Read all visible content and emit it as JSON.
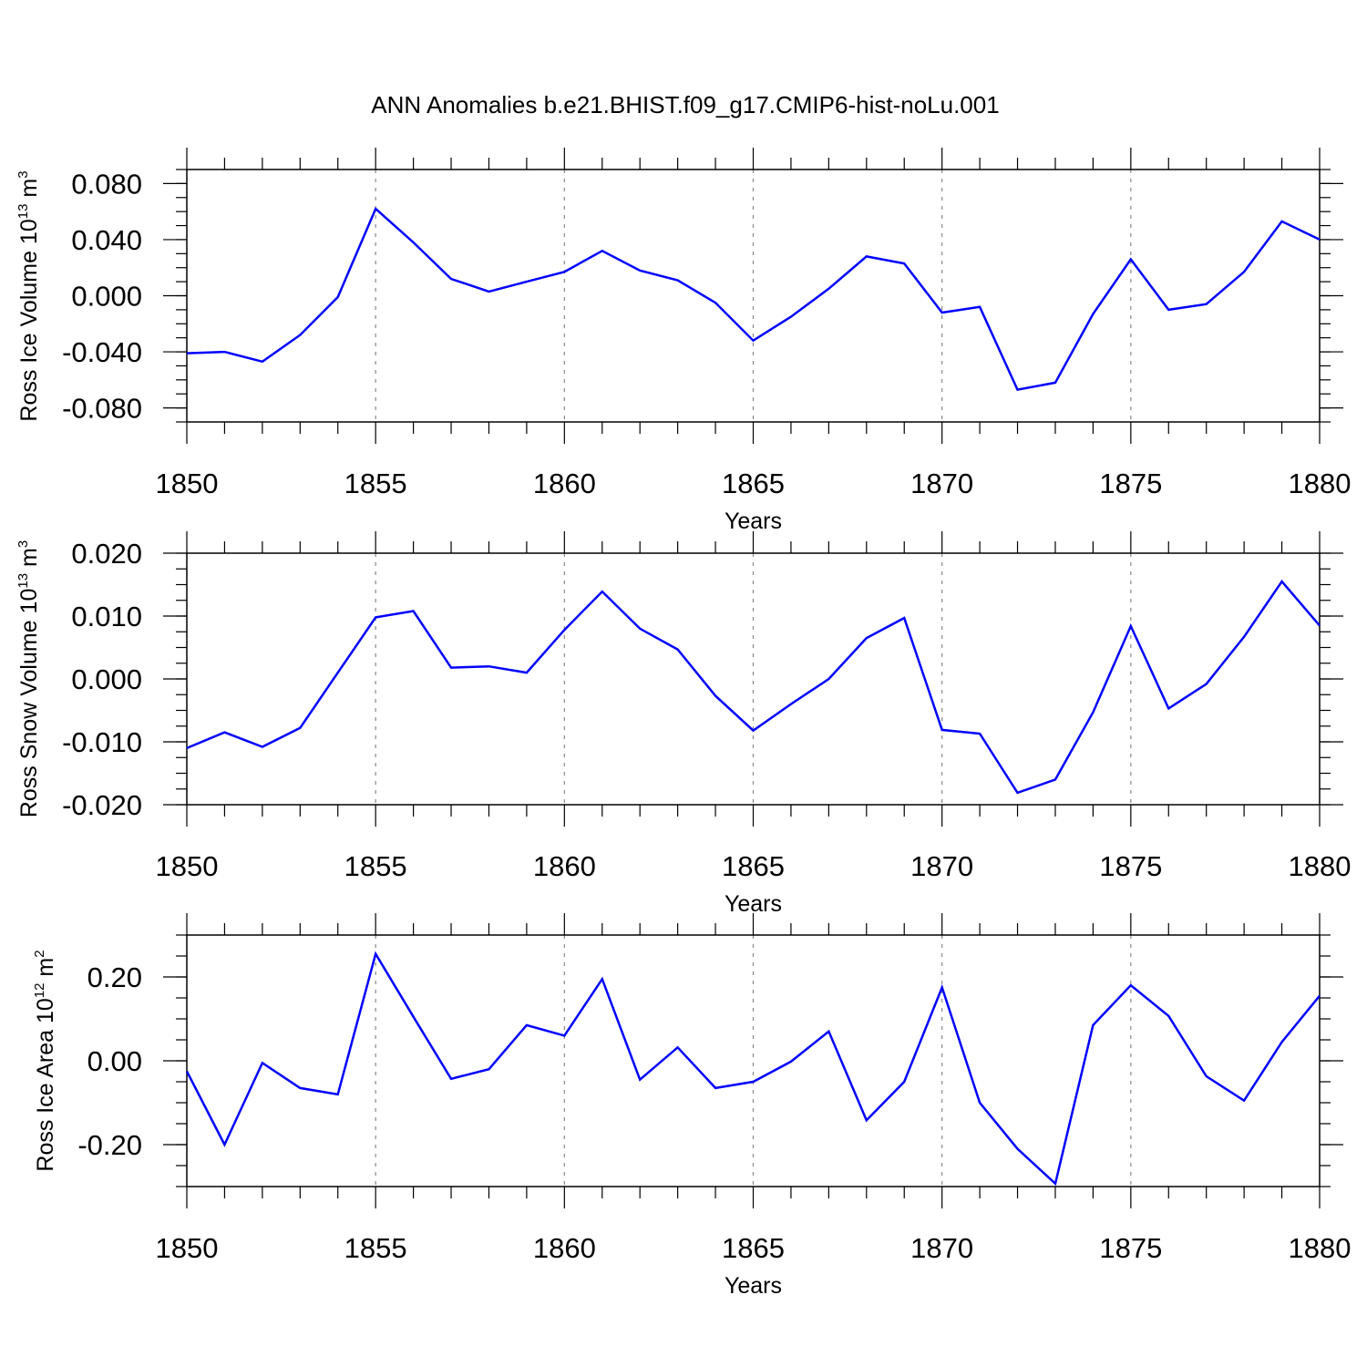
{
  "figure": {
    "title": "ANN Anomalies b.e21.BHIST.f09_g17.CMIP6-hist-noLu.001",
    "line_color": "#0000ff",
    "grid_color": "#888888",
    "axis_color": "#000000"
  },
  "chart_data": [
    {
      "type": "line",
      "ylabel": {
        "prefix": "Ross Ice Volume 10",
        "exp": "13",
        "unit": " m",
        "unit_exp": "3"
      },
      "xlabel": "Years",
      "xlim": [
        1850,
        1880
      ],
      "ylim": [
        -0.09,
        0.09
      ],
      "xticks": [
        1850,
        1855,
        1860,
        1865,
        1870,
        1875,
        1880
      ],
      "xtick_labels": [
        "1850",
        "1855",
        "1860",
        "1865",
        "1870",
        "1875",
        "1880"
      ],
      "yticks": [
        -0.08,
        -0.04,
        0.0,
        0.04,
        0.08
      ],
      "ytick_labels": [
        "-0.080",
        "-0.040",
        "0.000",
        "0.040",
        "0.080"
      ],
      "yminor_step": 0.01,
      "grid": "vertical dashed at major x ticks",
      "x": [
        1850,
        1851,
        1852,
        1853,
        1854,
        1855,
        1856,
        1857,
        1858,
        1859,
        1860,
        1861,
        1862,
        1863,
        1864,
        1865,
        1866,
        1867,
        1868,
        1869,
        1870,
        1871,
        1872,
        1873,
        1874,
        1875,
        1876,
        1877,
        1878,
        1879,
        1880
      ],
      "y": [
        -0.041,
        -0.04,
        -0.047,
        -0.028,
        -0.001,
        0.062,
        0.038,
        0.012,
        0.003,
        0.01,
        0.017,
        0.032,
        0.018,
        0.011,
        -0.005,
        -0.032,
        -0.015,
        0.005,
        0.028,
        0.023,
        -0.012,
        -0.008,
        -0.067,
        -0.062,
        -0.013,
        0.026,
        -0.01,
        -0.006,
        0.017,
        0.053,
        0.04
      ]
    },
    {
      "type": "line",
      "ylabel": {
        "prefix": "Ross Snow Volume 10",
        "exp": "13",
        "unit": " m",
        "unit_exp": "3"
      },
      "xlabel": "Years",
      "xlim": [
        1850,
        1880
      ],
      "ylim": [
        -0.02,
        0.02
      ],
      "xticks": [
        1850,
        1855,
        1860,
        1865,
        1870,
        1875,
        1880
      ],
      "xtick_labels": [
        "1850",
        "1855",
        "1860",
        "1865",
        "1870",
        "1875",
        "1880"
      ],
      "yticks": [
        -0.02,
        -0.01,
        0.0,
        0.01,
        0.02
      ],
      "ytick_labels": [
        "-0.020",
        "-0.010",
        "0.000",
        "0.010",
        "0.020"
      ],
      "yminor_step": 0.0025,
      "grid": "vertical dashed at major x ticks",
      "x": [
        1850,
        1851,
        1852,
        1853,
        1854,
        1855,
        1856,
        1857,
        1858,
        1859,
        1860,
        1861,
        1862,
        1863,
        1864,
        1865,
        1866,
        1867,
        1868,
        1869,
        1870,
        1871,
        1872,
        1873,
        1874,
        1875,
        1876,
        1877,
        1878,
        1879,
        1880
      ],
      "y": [
        -0.011,
        -0.0085,
        -0.0108,
        -0.0078,
        0.001,
        0.0098,
        0.0108,
        0.0018,
        0.002,
        0.001,
        0.0078,
        0.0139,
        0.008,
        0.0047,
        -0.0027,
        -0.0082,
        -0.004,
        0.0,
        0.0065,
        0.0097,
        -0.0081,
        -0.0087,
        -0.0181,
        -0.016,
        -0.0053,
        0.0084,
        -0.0047,
        -0.0008,
        0.0067,
        0.0155,
        0.0085
      ]
    },
    {
      "type": "line",
      "ylabel": {
        "prefix": "Ross Ice Area 10",
        "exp": "12",
        "unit": " m",
        "unit_exp": "2"
      },
      "xlabel": "Years",
      "xlim": [
        1850,
        1880
      ],
      "ylim": [
        -0.3,
        0.3
      ],
      "xticks": [
        1850,
        1855,
        1860,
        1865,
        1870,
        1875,
        1880
      ],
      "xtick_labels": [
        "1850",
        "1855",
        "1860",
        "1865",
        "1870",
        "1875",
        "1880"
      ],
      "yticks": [
        -0.2,
        0.0,
        0.2
      ],
      "ytick_labels": [
        "-0.20",
        "0.00",
        "0.20"
      ],
      "yminor_step": 0.05,
      "grid": "vertical dashed at major x ticks",
      "x": [
        1850,
        1851,
        1852,
        1853,
        1854,
        1855,
        1856,
        1857,
        1858,
        1859,
        1860,
        1861,
        1862,
        1863,
        1864,
        1865,
        1866,
        1867,
        1868,
        1869,
        1870,
        1871,
        1872,
        1873,
        1874,
        1875,
        1876,
        1877,
        1878,
        1879,
        1880
      ],
      "y": [
        -0.025,
        -0.2,
        -0.005,
        -0.065,
        -0.08,
        0.255,
        0.105,
        -0.043,
        -0.02,
        0.085,
        0.06,
        0.195,
        -0.045,
        0.032,
        -0.065,
        -0.05,
        -0.002,
        0.07,
        -0.142,
        -0.05,
        0.175,
        -0.1,
        -0.21,
        -0.293,
        0.085,
        0.18,
        0.107,
        -0.037,
        -0.095,
        0.045,
        0.155
      ]
    }
  ]
}
